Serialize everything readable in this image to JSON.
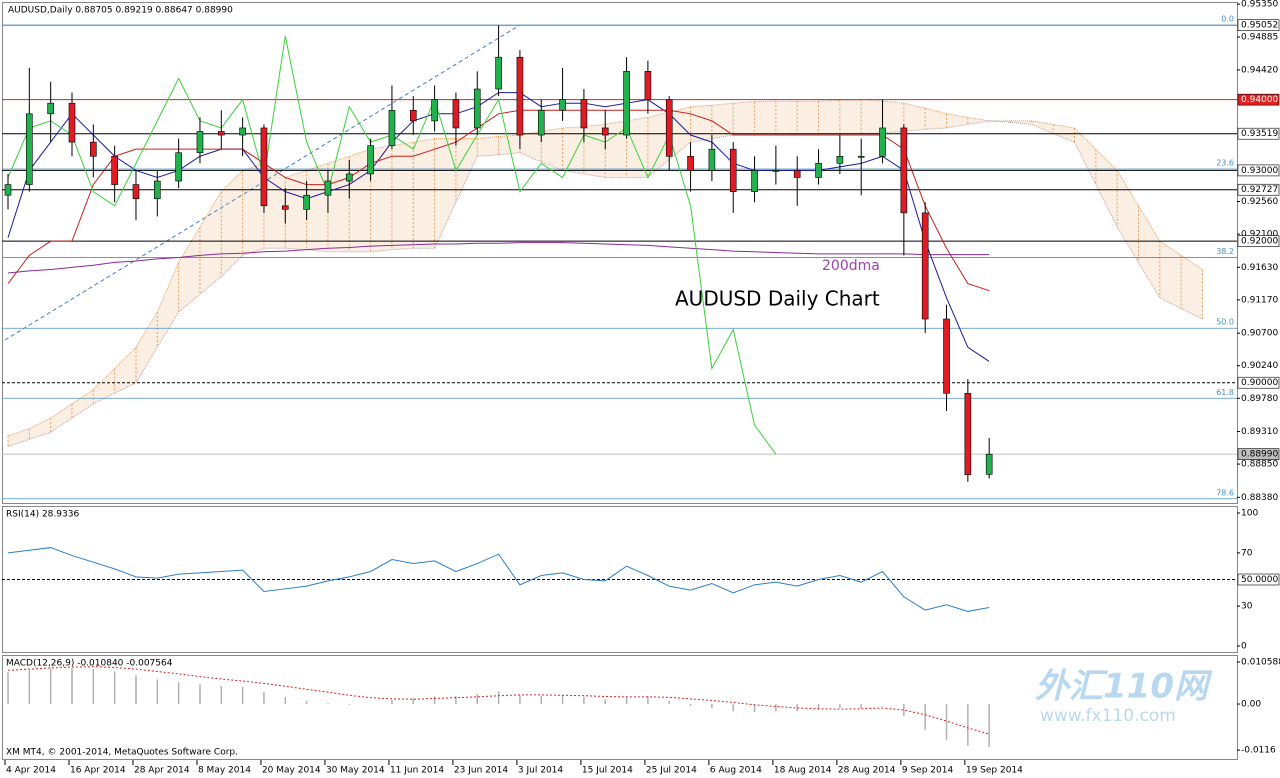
{
  "chart_data": [
    {
      "type": "candlestick",
      "header": "AUDUSD,Daily  0.88705 0.89219 0.88647 0.88990",
      "title": "AUDUSD Daily Chart",
      "ma_label": "200dma",
      "categories": [
        "4 Apr 2014",
        null,
        null,
        "16 Apr 2014",
        null,
        null,
        "28 Apr 2014",
        null,
        null,
        "8 May 2014",
        null,
        null,
        "20 May 2014",
        null,
        null,
        "30 May 2014",
        null,
        null,
        "11 Jun 2014",
        null,
        null,
        "23 Jun 2014",
        null,
        null,
        "3 Jul 2014",
        null,
        null,
        "15 Jul 2014",
        null,
        null,
        "25 Jul 2014",
        null,
        null,
        "6 Aug 2014",
        null,
        null,
        "18 Aug 2014",
        null,
        null,
        "28 Aug 2014",
        null,
        null,
        "9 Sep 2014",
        null,
        null,
        "19 Sep 2014",
        null,
        null,
        null,
        null,
        null,
        null,
        null,
        null,
        null,
        null,
        null
      ],
      "open": [
        0.9265,
        0.928,
        0.938,
        0.9395,
        0.934,
        0.932,
        0.928,
        0.926,
        0.9285,
        0.9325,
        0.9355,
        0.935,
        0.936,
        0.925,
        0.9245,
        0.9265,
        0.9285,
        0.9295,
        0.9335,
        0.9385,
        0.937,
        0.94,
        0.936,
        0.9415,
        0.946,
        0.935,
        0.9385,
        0.94,
        0.936,
        0.935,
        0.944,
        0.94,
        0.932,
        0.93,
        0.933,
        0.927,
        0.93,
        0.93,
        0.929,
        0.931,
        0.932,
        0.932,
        0.936,
        0.924,
        0.909,
        0.8985,
        0.88705,
        null,
        null,
        null,
        null,
        null,
        null,
        null,
        null,
        null,
        null
      ],
      "high": [
        0.9295,
        0.9445,
        0.9425,
        0.941,
        0.9365,
        0.9335,
        0.93,
        0.93,
        0.9345,
        0.9375,
        0.9385,
        0.9375,
        0.9365,
        0.9275,
        0.9285,
        0.93,
        0.9315,
        0.9345,
        0.942,
        0.9405,
        0.942,
        0.941,
        0.944,
        0.9505,
        0.947,
        0.94,
        0.9445,
        0.9415,
        0.9385,
        0.946,
        0.9455,
        0.9405,
        0.934,
        0.935,
        0.934,
        0.932,
        0.9335,
        0.932,
        0.933,
        0.935,
        0.9345,
        0.94,
        0.9365,
        0.9255,
        0.911,
        0.9005,
        0.89219,
        null,
        null,
        null,
        null,
        null,
        null,
        null,
        null,
        null,
        null
      ],
      "low": [
        0.9245,
        0.927,
        0.934,
        0.932,
        0.929,
        0.9255,
        0.923,
        0.9235,
        0.9275,
        0.931,
        0.933,
        0.932,
        0.924,
        0.9225,
        0.923,
        0.924,
        0.926,
        0.9285,
        0.933,
        0.935,
        0.9355,
        0.9335,
        0.935,
        0.9405,
        0.933,
        0.934,
        0.937,
        0.934,
        0.933,
        0.9345,
        0.938,
        0.93,
        0.927,
        0.9285,
        0.924,
        0.9255,
        0.928,
        0.925,
        0.928,
        0.9295,
        0.9265,
        0.931,
        0.918,
        0.907,
        0.896,
        0.886,
        0.88647,
        null,
        null,
        null,
        null,
        null,
        null,
        null,
        null,
        null,
        null
      ],
      "close": [
        0.928,
        0.938,
        0.9395,
        0.934,
        0.932,
        0.928,
        0.926,
        0.9285,
        0.9325,
        0.9355,
        0.935,
        0.936,
        0.925,
        0.9245,
        0.9265,
        0.9285,
        0.9295,
        0.9335,
        0.9385,
        0.937,
        0.94,
        0.936,
        0.9415,
        0.946,
        0.935,
        0.9385,
        0.94,
        0.936,
        0.935,
        0.944,
        0.94,
        0.932,
        0.93,
        0.933,
        0.927,
        0.93,
        0.93,
        0.929,
        0.931,
        0.932,
        0.932,
        0.936,
        0.924,
        0.909,
        0.8985,
        0.887,
        0.8899,
        null,
        null,
        null,
        null,
        null,
        null,
        null,
        null,
        null,
        null
      ],
      "up_color": "#22b14c",
      "down_color": "#e01b24",
      "lines": [
        {
          "color": "#1a1aa0",
          "values": [
            0.9205,
            0.93,
            0.934,
            0.938,
            0.935,
            0.932,
            0.93,
            0.929,
            0.93,
            0.932,
            0.933,
            0.933,
            0.929,
            0.927,
            0.926,
            0.927,
            0.928,
            0.93,
            0.934,
            0.937,
            0.938,
            0.938,
            0.939,
            0.941,
            0.941,
            0.939,
            0.9395,
            0.9395,
            0.939,
            0.9395,
            0.94,
            0.938,
            0.935,
            0.934,
            0.931,
            0.93,
            0.93,
            0.93,
            0.93,
            0.9305,
            0.931,
            0.932,
            0.93,
            0.92,
            0.912,
            0.905,
            0.903,
            null,
            null,
            null,
            null,
            null,
            null,
            null,
            null,
            null,
            null
          ]
        },
        {
          "color": "#c81e1e",
          "values": [
            0.914,
            0.918,
            0.92,
            0.92,
            0.928,
            0.932,
            0.933,
            0.933,
            0.933,
            0.933,
            0.933,
            0.933,
            0.931,
            0.929,
            0.928,
            0.928,
            0.929,
            0.931,
            0.932,
            0.932,
            0.933,
            0.934,
            0.936,
            0.938,
            0.9385,
            0.9385,
            0.9385,
            0.9385,
            0.9385,
            0.9385,
            0.9385,
            0.9385,
            0.938,
            0.937,
            0.935,
            0.935,
            0.935,
            0.935,
            0.935,
            0.935,
            0.935,
            0.935,
            0.933,
            0.925,
            0.919,
            0.914,
            0.913,
            null,
            null,
            null,
            null,
            null,
            null,
            null,
            null,
            null,
            null
          ]
        },
        {
          "color": "#8a2a9a",
          "values": [
            0.9155,
            0.9158,
            0.916,
            0.9163,
            0.9166,
            0.917,
            0.9172,
            0.9175,
            0.9177,
            0.918,
            0.9182,
            0.9183,
            0.9185,
            0.9186,
            0.9188,
            0.919,
            0.9191,
            0.9193,
            0.9194,
            0.9195,
            0.9196,
            0.9196,
            0.9197,
            0.9197,
            0.9198,
            0.9198,
            0.9198,
            0.9197,
            0.9196,
            0.9195,
            0.9194,
            0.9192,
            0.919,
            0.9188,
            0.9186,
            0.9185,
            0.9184,
            0.9183,
            0.9182,
            0.9182,
            0.9182,
            0.9182,
            0.9182,
            0.9181,
            0.9181,
            0.9181,
            0.9181,
            null,
            null,
            null,
            null,
            null,
            null,
            null,
            null,
            null,
            null
          ]
        },
        {
          "color": "#3ccf3c",
          "values": [
            0.929,
            0.936,
            0.937,
            0.935,
            0.927,
            0.925,
            0.931,
            0.937,
            0.943,
            0.937,
            0.936,
            0.94,
            0.929,
            0.949,
            0.934,
            0.927,
            0.939,
            0.934,
            0.935,
            0.933,
            0.94,
            0.93,
            0.935,
            0.94,
            0.927,
            0.931,
            0.929,
            0.935,
            0.934,
            0.936,
            0.929,
            0.935,
            0.925,
            0.902,
            0.9075,
            0.894,
            0.8899,
            null,
            null,
            null,
            null,
            null,
            null,
            null,
            null,
            null,
            null,
            null,
            null,
            null,
            null,
            null,
            null,
            null,
            null,
            null,
            null
          ]
        }
      ],
      "cloud": {
        "color": "#e8a060",
        "upper": [
          0.8925,
          0.8935,
          0.895,
          0.897,
          0.899,
          0.902,
          0.905,
          0.91,
          0.917,
          0.922,
          0.927,
          0.93,
          0.931,
          0.929,
          0.93,
          0.931,
          0.932,
          0.933,
          0.9335,
          0.934,
          0.9345,
          0.9345,
          0.9345,
          0.9348,
          0.935,
          0.9355,
          0.936,
          0.9362,
          0.9365,
          0.937,
          0.9375,
          0.9382,
          0.939,
          0.9392,
          0.9395,
          0.9397,
          0.9398,
          0.9398,
          0.9398,
          0.9399,
          0.94,
          0.9398,
          0.9395,
          0.9388,
          0.938,
          0.9375,
          0.937,
          0.937,
          0.937,
          0.9365,
          0.936,
          0.933,
          0.93,
          0.925,
          0.92,
          0.918,
          0.916
        ],
        "lower": [
          0.891,
          0.892,
          0.893,
          0.895,
          0.897,
          0.8985,
          0.9,
          0.905,
          0.91,
          0.9125,
          0.915,
          0.918,
          0.919,
          0.919,
          0.9188,
          0.9185,
          0.9185,
          0.9185,
          0.9188,
          0.919,
          0.919,
          0.9255,
          0.932,
          0.9322,
          0.9325,
          0.9312,
          0.93,
          0.9295,
          0.929,
          0.929,
          0.929,
          0.9315,
          0.934,
          0.9345,
          0.935,
          0.935,
          0.935,
          0.9351,
          0.9352,
          0.9352,
          0.9352,
          0.9353,
          0.9355,
          0.9358,
          0.936,
          0.9365,
          0.937,
          0.9368,
          0.9365,
          0.9352,
          0.934,
          0.928,
          0.922,
          0.917,
          0.912,
          0.9105,
          0.909
        ]
      },
      "ylim": [
        0.883,
        0.9538
      ],
      "yticks": [
        {
          "value": 0.9535,
          "label": "0.95350"
        },
        0.94885,
        {
          "value": 0.9442,
          "label": "0.94420"
        },
        {
          "value": 0.9256,
          "label": "0.92560"
        },
        {
          "value": 0.921,
          "label": "0.92100"
        },
        {
          "value": 0.9163,
          "label": "0.91630"
        },
        {
          "value": 0.9117,
          "label": "0.91170"
        },
        {
          "value": 0.907,
          "label": "0.90700"
        },
        {
          "value": 0.9024,
          "label": "0.90240"
        },
        {
          "value": 0.8978,
          "label": "0.89780"
        },
        {
          "value": 0.8931,
          "label": "0.89310"
        },
        {
          "value": 0.8885,
          "label": "0.88850"
        },
        {
          "value": 0.8838,
          "label": "0.88380"
        }
      ],
      "levels": [
        {
          "value": 0.95052,
          "color": "#4a90c0",
          "box": "#ffffff"
        },
        {
          "value": 0.94,
          "label": "0.94000",
          "color": "#e02020",
          "box": "#e02020"
        },
        {
          "value": 0.93519,
          "color": "#000000",
          "box": "#ffffff"
        },
        {
          "value": 0.93,
          "label": "0.93000",
          "color": "#000000",
          "box": "#ffffff"
        },
        {
          "value": 0.92727,
          "color": "#000000",
          "box": "#ffffff"
        },
        {
          "value": 0.92,
          "label": "0.92000",
          "color": "#000000",
          "box": "#ffffff"
        },
        {
          "value": 0.9,
          "label": "0.90000",
          "color": "#000000",
          "box": "#ffffff",
          "dash": true
        },
        {
          "value": 0.8899,
          "label": "0.88990",
          "color": "#c0c0c0",
          "box": "#c0c0c0"
        }
      ],
      "fib": [
        {
          "label": "0.0",
          "value": 0.95052
        },
        {
          "label": "23.6",
          "value": 0.9302
        },
        {
          "label": "38.2",
          "value": 0.9177
        },
        {
          "label": "50.0",
          "value": 0.9077
        },
        {
          "label": "61.8",
          "value": 0.8978
        },
        {
          "label": "78.6",
          "value": 0.8836
        }
      ],
      "fib_color": "#4a90c0"
    },
    {
      "type": "line",
      "header": "RSI(14) 28.9336",
      "color": "#2a7fc8",
      "values": [
        70,
        72,
        74,
        68,
        63,
        58,
        52,
        51,
        54,
        55,
        56,
        57,
        41,
        43,
        45,
        49,
        52,
        56,
        65,
        62,
        64,
        56,
        62,
        69,
        46,
        53,
        55,
        50,
        49,
        60,
        53,
        45,
        42,
        47,
        40,
        46,
        48,
        45,
        50,
        53,
        48,
        56,
        37,
        27,
        31,
        26,
        28.93
      ],
      "ylim": [
        -4.5,
        104.5
      ],
      "yticks": [
        100,
        70,
        30,
        0
      ],
      "levels": [
        {
          "value": 50,
          "label": "50.0000"
        }
      ]
    },
    {
      "type": "macd",
      "header": "MACD(12,26,9) -0.010840 -0.007564",
      "hist_color": "#b0b0b0",
      "signal_color": "#e02020",
      "histogram": [
        0.008,
        0.0085,
        0.009,
        0.009,
        0.0088,
        0.0082,
        0.0072,
        0.0062,
        0.0055,
        0.005,
        0.0046,
        0.0043,
        0.003,
        0.0018,
        0.0008,
        0.0002,
        -0.0002,
        0,
        0.001,
        0.0015,
        0.002,
        0.002,
        0.0025,
        0.0032,
        0.0022,
        0.002,
        0.0022,
        0.0018,
        0.0012,
        0.0018,
        0.002,
        0.0008,
        -0.0005,
        -0.001,
        -0.0018,
        -0.002,
        -0.0018,
        -0.0018,
        -0.0015,
        -0.001,
        -0.001,
        0,
        -0.003,
        -0.0065,
        -0.009,
        -0.0105,
        -0.01084
      ],
      "signal": [
        0.0085,
        0.0088,
        0.0091,
        0.0093,
        0.0094,
        0.0092,
        0.0088,
        0.0082,
        0.0076,
        0.0069,
        0.0063,
        0.0058,
        0.0052,
        0.0045,
        0.0037,
        0.003,
        0.0022,
        0.0016,
        0.0013,
        0.0012,
        0.0014,
        0.0016,
        0.0018,
        0.0021,
        0.0023,
        0.0023,
        0.0022,
        0.0021,
        0.0019,
        0.0018,
        0.0018,
        0.0017,
        0.0013,
        0.0009,
        0.0004,
        -0.0002,
        -0.0006,
        -0.001,
        -0.0012,
        -0.0013,
        -0.0012,
        -0.001,
        -0.0015,
        -0.0027,
        -0.0043,
        -0.006,
        -0.007564
      ],
      "ylim": [
        -0.0141,
        0.0121
      ],
      "yticks": [
        0.010588,
        {
          "value": 0,
          "label": "0.00"
        },
        -0.0116
      ]
    }
  ],
  "footer": "XM MT4, © 2001-2014, MetaQuotes Software Corp.",
  "watermark": {
    "logo": "外汇110网",
    "url": "www.fx110.com"
  }
}
